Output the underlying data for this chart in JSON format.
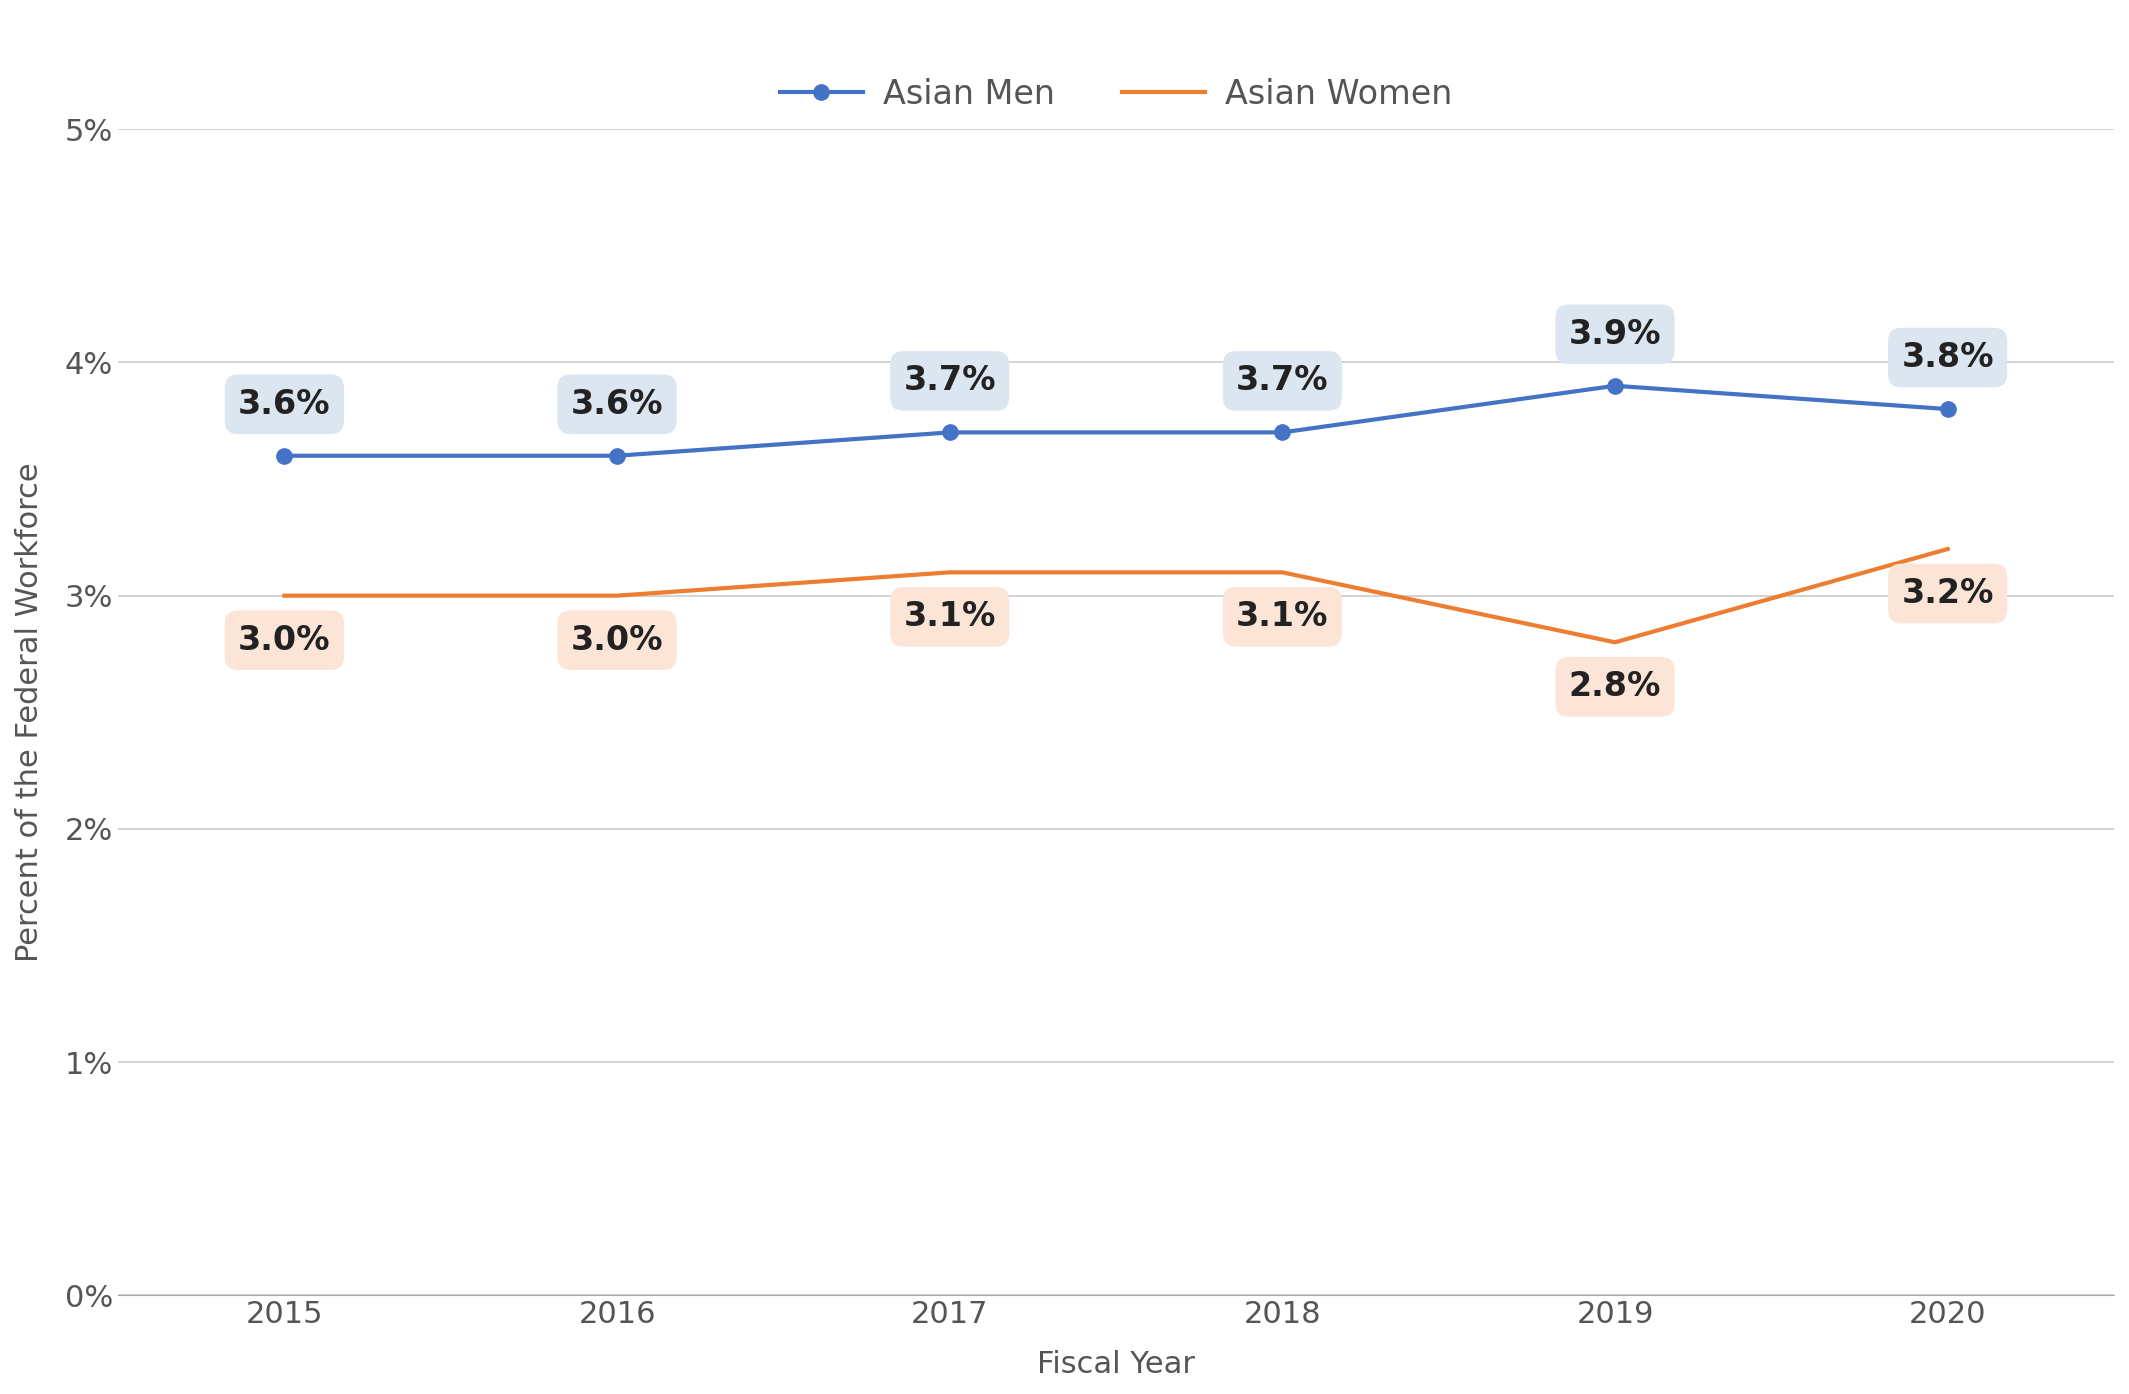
{
  "years": [
    2015,
    2016,
    2017,
    2018,
    2019,
    2020
  ],
  "asian_men": [
    3.6,
    3.6,
    3.7,
    3.7,
    3.9,
    3.8
  ],
  "asian_women": [
    3.0,
    3.0,
    3.1,
    3.1,
    2.8,
    3.2
  ],
  "men_labels": [
    "3.6%",
    "3.6%",
    "3.7%",
    "3.7%",
    "3.9%",
    "3.8%"
  ],
  "women_labels": [
    "3.0%",
    "3.0%",
    "3.1%",
    "3.1%",
    "2.8%",
    "3.2%"
  ],
  "men_color": "#4472C4",
  "women_color": "#ED7D31",
  "men_box_color": "#dce6f1",
  "women_box_color": "#fce4d6",
  "background_color": "#ffffff",
  "grid_color": "#cccccc",
  "ylabel": "Percent of the Federal Workforce",
  "xlabel": "Fiscal Year",
  "legend_men": "Asian Men",
  "legend_women": "Asian Women",
  "ylim": [
    0,
    5
  ],
  "yticks": [
    0,
    1,
    2,
    3,
    4,
    5
  ],
  "label_fontsize": 22,
  "tick_fontsize": 22,
  "annot_fontsize": 24,
  "legend_fontsize": 24
}
